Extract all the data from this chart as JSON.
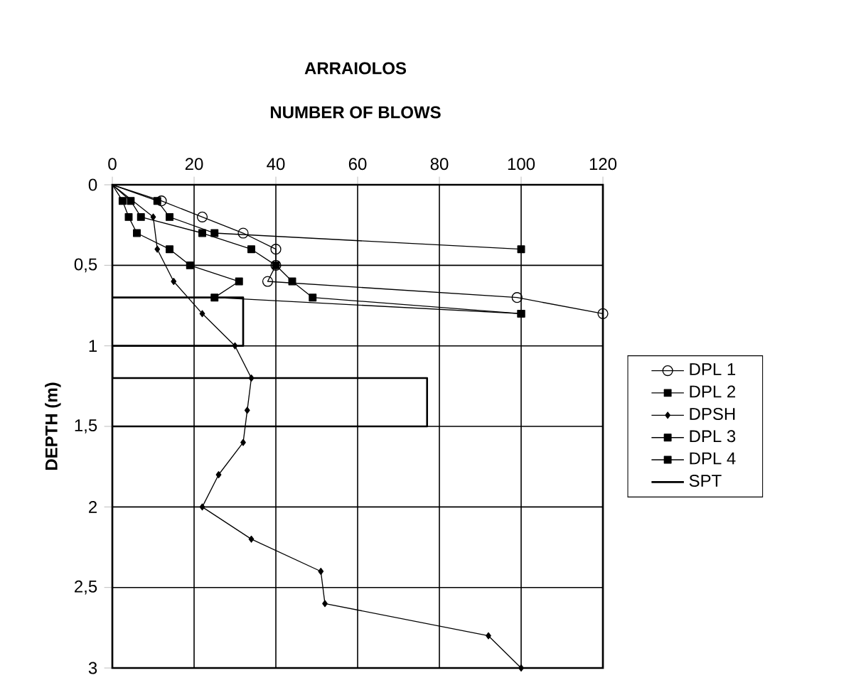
{
  "chart_data": {
    "type": "line",
    "title": "ARRAIOLOS",
    "subtitle": "NUMBER OF BLOWS",
    "ylabel": "DEPTH (m)",
    "xlim": [
      0,
      120
    ],
    "xticks": [
      0,
      20,
      40,
      60,
      80,
      100,
      120
    ],
    "ylim": [
      3,
      0
    ],
    "yticks": [
      0,
      {
        "value": 0.5,
        "label": "0,5"
      },
      1,
      {
        "value": 1.5,
        "label": "1,5"
      },
      2,
      {
        "value": 2.5,
        "label": "2,5"
      },
      3
    ],
    "grid": true,
    "legend": "right",
    "series": [
      {
        "name": "DPL 1",
        "color": "#000000",
        "marker": "circle",
        "x": [
          0,
          12,
          22,
          32,
          40,
          40,
          38,
          99,
          120
        ],
        "values": [
          0,
          0.1,
          0.2,
          0.3,
          0.4,
          0.5,
          0.6,
          0.7,
          0.8
        ]
      },
      {
        "name": "DPL 2",
        "color": "#000000",
        "marker": "square",
        "x": [
          0,
          11,
          14,
          25,
          100
        ],
        "values": [
          0,
          0.1,
          0.2,
          0.3,
          0.4
        ]
      },
      {
        "name": "DPSH",
        "color": "#000000",
        "marker": "diamond",
        "x": [
          0,
          10,
          11,
          15,
          22,
          30,
          34,
          33,
          32,
          26,
          22,
          34,
          51,
          52,
          92,
          100
        ],
        "values": [
          0,
          0.2,
          0.4,
          0.6,
          0.8,
          1.0,
          1.2,
          1.4,
          1.6,
          1.8,
          2.0,
          2.2,
          2.4,
          2.6,
          2.8,
          3.0
        ]
      },
      {
        "name": "DPL 3",
        "color": "#000000",
        "marker": "square",
        "x": [
          0,
          4.5,
          7,
          22,
          34,
          40,
          44,
          49,
          100
        ],
        "values": [
          0,
          0.1,
          0.2,
          0.3,
          0.4,
          0.5,
          0.6,
          0.7,
          0.8
        ]
      },
      {
        "name": "DPL 4",
        "color": "#000000",
        "marker": "square",
        "x": [
          0,
          2.5,
          4,
          6,
          14,
          19,
          31,
          25,
          100
        ],
        "values": [
          0,
          0.1,
          0.2,
          0.3,
          0.4,
          0.5,
          0.6,
          0.7,
          0.8
        ]
      },
      {
        "name": "SPT",
        "color": "#000000",
        "marker": "none",
        "x": [
          0,
          32,
          32,
          0,
          0,
          77,
          77,
          0
        ],
        "values": [
          0.7,
          0.7,
          1.0,
          1.0,
          1.2,
          1.2,
          1.5,
          1.5
        ]
      }
    ]
  }
}
